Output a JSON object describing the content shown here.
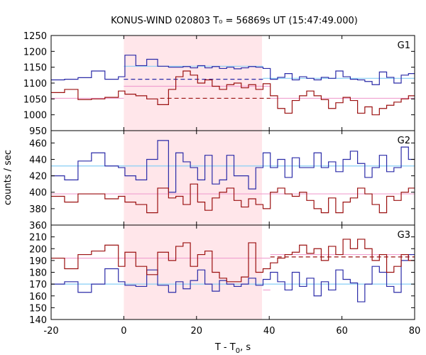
{
  "title": "KONUS-WIND 020803 T₀ = 56869s UT (15:47:49.000)",
  "colors": {
    "blue": "#2b2ba8",
    "red": "#9b1010",
    "light_blue": "#87cef5",
    "pink": "#f0a0d0",
    "shade": "#ffe6ea"
  },
  "chart_data": {
    "type": "line",
    "xlabel_main": "T - T",
    "xlabel_sub": "0",
    "xlabel_tail": ", s",
    "ylabel": "counts / sec",
    "xlim": [
      -20,
      80
    ],
    "x_ticks": [
      -20,
      0,
      20,
      40,
      60,
      80
    ],
    "shaded_interval": [
      0,
      38
    ],
    "bin_edges": [
      -20,
      -16.3,
      -12.6,
      -8.9,
      -5.2,
      -1.5,
      0.3,
      3.3,
      6.3,
      9.3,
      12.3,
      14.3,
      16.3,
      18.3,
      20.3,
      22.3,
      24.3,
      26.3,
      28.3,
      30.3,
      32.3,
      34.3,
      36.3,
      38.3,
      40.3,
      42.3,
      44.3,
      46.3,
      48.3,
      50.3,
      52.3,
      54.3,
      56.3,
      58.3,
      60.3,
      62.3,
      64.3,
      66.3,
      68.3,
      70.3,
      72.3,
      74.3,
      76.3,
      78.3,
      80
    ],
    "panels": [
      {
        "name": "G1",
        "ylim": [
          950,
          1250
        ],
        "y_ticks": [
          950,
          1000,
          1050,
          1100,
          1150,
          1200,
          1250
        ],
        "series": [
          {
            "color_key": "blue",
            "values": [
              1110,
              1112,
              1117,
              1138,
              1112,
              1120,
              1188,
              1155,
              1175,
              1153,
              1150,
              1150,
              1152,
              1148,
              1155,
              1148,
              1152,
              1146,
              1150,
              1145,
              1148,
              1152,
              1150,
              1146,
              1112,
              1118,
              1130,
              1110,
              1120,
              1115,
              1110,
              1118,
              1115,
              1138,
              1120,
              1112,
              1110,
              1105,
              1095,
              1135,
              1118,
              1100,
              1125,
              1130
            ]
          },
          {
            "color_key": "red",
            "values": [
              1070,
              1080,
              1048,
              1050,
              1055,
              1075,
              1065,
              1060,
              1050,
              1032,
              1080,
              1120,
              1138,
              1125,
              1100,
              1110,
              1090,
              1080,
              1095,
              1100,
              1085,
              1095,
              1080,
              1098,
              1060,
              1020,
              1005,
              1045,
              1060,
              1075,
              1060,
              1048,
              1020,
              1038,
              1055,
              1045,
              1005,
              1025,
              1000,
              1020,
              1030,
              1040,
              1050,
              1060
            ]
          }
        ],
        "fits": [
          {
            "color_key": "light_blue",
            "dash": false,
            "x": [
              0,
              38.3
            ],
            "y": [
              1153,
              1153
            ]
          },
          {
            "color_key": "light_blue",
            "dash": false,
            "x": [
              38.3,
              80
            ],
            "y": [
              1115,
              1115
            ]
          },
          {
            "color_key": "blue",
            "dash": true,
            "x": [
              0,
              38.3
            ],
            "y": [
              1112,
              1112
            ]
          },
          {
            "color_key": "pink",
            "dash": false,
            "x": [
              -20,
              0
            ],
            "y": [
              1052,
              1052
            ]
          },
          {
            "color_key": "pink",
            "dash": false,
            "x": [
              0,
              40.3
            ],
            "y": [
              1090,
              1090
            ]
          },
          {
            "color_key": "pink",
            "dash": false,
            "x": [
              40.3,
              80
            ],
            "y": [
              1052,
              1052
            ]
          },
          {
            "color_key": "red",
            "dash": true,
            "x": [
              10,
              40.3
            ],
            "y": [
              1052,
              1052
            ]
          }
        ]
      },
      {
        "name": "G2",
        "ylim": [
          360,
          475
        ],
        "y_ticks": [
          360,
          380,
          400,
          420,
          440,
          460
        ],
        "series": [
          {
            "color_key": "blue",
            "values": [
              420,
              415,
              438,
              448,
              432,
              430,
              420,
              415,
              440,
              463,
              400,
              448,
              437,
              430,
              415,
              445,
              410,
              415,
              445,
              420,
              420,
              404,
              430,
              448,
              430,
              440,
              418,
              442,
              430,
              430,
              448,
              430,
              437,
              425,
              440,
              450,
              435,
              418,
              430,
              445,
              425,
              430,
              455,
              440
            ]
          },
          {
            "color_key": "red",
            "values": [
              395,
              388,
              398,
              398,
              392,
              395,
              388,
              385,
              375,
              405,
              393,
              395,
              385,
              410,
              388,
              378,
              393,
              400,
              405,
              390,
              382,
              392,
              385,
              380,
              400,
              405,
              398,
              395,
              400,
              390,
              380,
              375,
              393,
              375,
              388,
              393,
              405,
              398,
              385,
              375,
              395,
              390,
              400,
              405
            ]
          }
        ],
        "fits": [
          {
            "color_key": "light_blue",
            "dash": false,
            "x": [
              -20,
              80
            ],
            "y": [
              432,
              432
            ]
          },
          {
            "color_key": "pink",
            "dash": false,
            "x": [
              -20,
              80
            ],
            "y": [
              398,
              398
            ]
          }
        ]
      },
      {
        "name": "G3",
        "ylim": [
          140,
          220
        ],
        "y_ticks": [
          140,
          150,
          160,
          170,
          180,
          190,
          200,
          210
        ],
        "series": [
          {
            "color_key": "blue",
            "values": [
              170,
              172,
              163,
              170,
              183,
              172,
              169,
              168,
              182,
              169,
              163,
              172,
              166,
              173,
              182,
              170,
              164,
              173,
              170,
              168,
              170,
              175,
              169,
              174,
              180,
              172,
              165,
              180,
              168,
              175,
              160,
              172,
              165,
              182,
              174,
              171,
              155,
              170,
              185,
              180,
              168,
              163,
              190,
              195
            ]
          },
          {
            "color_key": "red",
            "values": [
              192,
              183,
              195,
              198,
              203,
              185,
              197,
              185,
              178,
              197,
              190,
              202,
              205,
              185,
              195,
              198,
              180,
              175,
              172,
              172,
              176,
              205,
              180,
              183,
              188,
              192,
              195,
              197,
              203,
              196,
              200,
              190,
              202,
              195,
              208,
              200,
              208,
              200,
              190,
              195,
              180,
              185,
              195,
              190
            ]
          }
        ],
        "fits": [
          {
            "color_key": "light_blue",
            "dash": false,
            "x": [
              -20,
              80
            ],
            "y": [
              170,
              170
            ]
          },
          {
            "color_key": "pink",
            "dash": false,
            "x": [
              -20,
              40.3
            ],
            "y": [
              192,
              192
            ]
          },
          {
            "color_key": "pink",
            "dash": false,
            "x": [
              38.3,
              40.3
            ],
            "y": [
              165,
              165
            ]
          },
          {
            "color_key": "pink",
            "dash": false,
            "x": [
              40.3,
              80
            ],
            "y": [
              195,
              195
            ]
          },
          {
            "color_key": "red",
            "dash": true,
            "x": [
              40.3,
              80
            ],
            "y": [
              193,
              193
            ]
          }
        ]
      }
    ]
  }
}
